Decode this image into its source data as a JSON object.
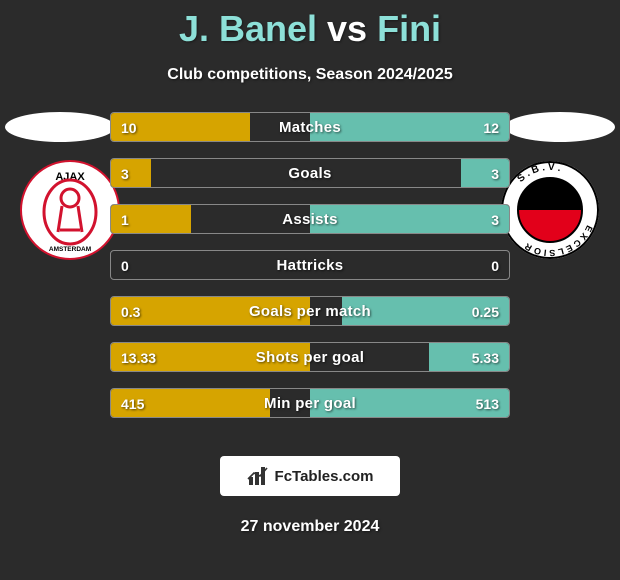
{
  "title": {
    "player1": "J. Banel",
    "separator": "vs",
    "player2": "Fini",
    "player_color": "#8de0d8",
    "separator_color": "#ffffff",
    "fontsize": 36
  },
  "subtitle": "Club competitions, Season 2024/2025",
  "background_color": "#2b2b2b",
  "player1_color": "#d6a400",
  "player2_color": "#66bfae",
  "bar_border_color": "#888888",
  "text_color": "#ffffff",
  "stats": [
    {
      "label": "Matches",
      "left_val": "10",
      "right_val": "12",
      "left_pct": 35,
      "right_pct": 50
    },
    {
      "label": "Goals",
      "left_val": "3",
      "right_val": "3",
      "left_pct": 10,
      "right_pct": 12
    },
    {
      "label": "Assists",
      "left_val": "1",
      "right_val": "3",
      "left_pct": 20,
      "right_pct": 50
    },
    {
      "label": "Hattricks",
      "left_val": "0",
      "right_val": "0",
      "left_pct": 0,
      "right_pct": 0
    },
    {
      "label": "Goals per match",
      "left_val": "0.3",
      "right_val": "0.25",
      "left_pct": 50,
      "right_pct": 42
    },
    {
      "label": "Shots per goal",
      "left_val": "13.33",
      "right_val": "5.33",
      "left_pct": 50,
      "right_pct": 20
    },
    {
      "label": "Min per goal",
      "left_val": "415",
      "right_val": "513",
      "left_pct": 40,
      "right_pct": 50
    }
  ],
  "badges": {
    "left": {
      "name": "Ajax",
      "ring_color": "#ffffff",
      "inner_bg": "#ffffff",
      "accent": "#d2122e",
      "text_top": "AJAX",
      "text_bottom": "AMSTERDAM"
    },
    "right": {
      "name": "S.B.V. Excelsior",
      "ring_color": "#ffffff",
      "top_half": "#000000",
      "bottom_half": "#e2001a",
      "ring_text": "S.B.V.  EXCELSIOR"
    }
  },
  "footer": {
    "logo_text": "FcTables.com",
    "date": "27 november 2024"
  }
}
